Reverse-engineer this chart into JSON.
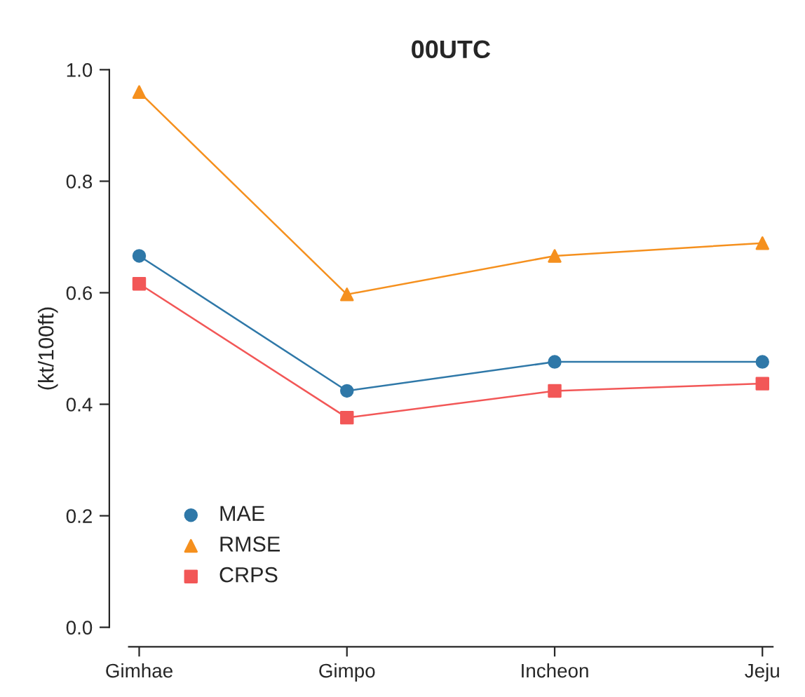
{
  "chart_data": {
    "type": "line",
    "title": "00UTC",
    "ylabel": "(kt/100ft)",
    "categories": [
      "Gimhae",
      "Gimpo",
      "Incheon",
      "Jeju"
    ],
    "series": [
      {
        "name": "MAE",
        "color": "#2f78a8",
        "marker": "circle",
        "values": [
          0.666,
          0.424,
          0.476,
          0.476
        ]
      },
      {
        "name": "RMSE",
        "color": "#f5901e",
        "marker": "triangle",
        "values": [
          0.96,
          0.597,
          0.666,
          0.689
        ]
      },
      {
        "name": "CRPS",
        "color": "#f25757",
        "marker": "square",
        "values": [
          0.616,
          0.376,
          0.424,
          0.437
        ]
      }
    ],
    "ylim": [
      0,
      1
    ],
    "yticks": [
      {
        "value": 0,
        "label": "0.0"
      },
      {
        "value": 0.2,
        "label": "0.2"
      },
      {
        "value": 0.4,
        "label": "0.4"
      },
      {
        "value": 0.6,
        "label": "0.6"
      },
      {
        "value": 0.8,
        "label": "0.8"
      },
      {
        "value": 1,
        "label": "1.0"
      }
    ],
    "grid": false,
    "legend": "bottom left",
    "line_style": "solid"
  }
}
